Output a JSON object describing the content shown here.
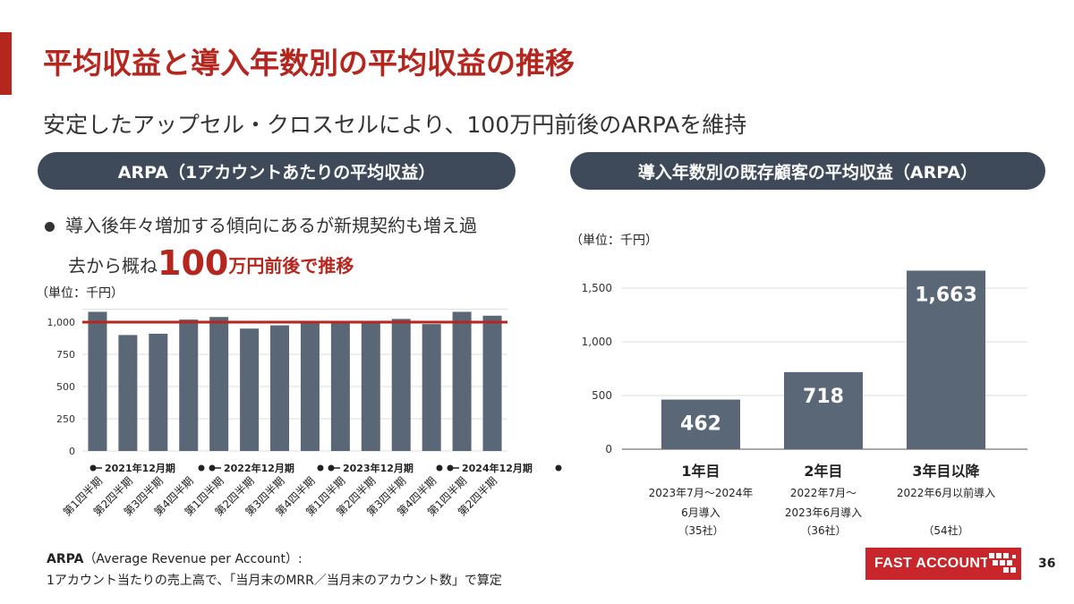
{
  "page": {
    "title": "平均収益と導入年数別の平均収益の推移",
    "subtitle": "安定したアップセル・クロスセルにより、100万円前後のARPAを維持",
    "left_header": "ARPA（1アカウントあたりの平均収益）",
    "right_header": "導入年数別の既存顧客の平均収益（ARPA）",
    "bullet_line1": "導入後年々増加する傾向にあるが新規契約も増え過",
    "bullet_line2_pre": "去から概ね",
    "bullet_big": "100",
    "bullet_line2_red": "万円",
    "bullet_line2_post": "前後で推移",
    "note_term": "ARPA",
    "note_def": "（Average Revenue per Account）:",
    "note_line2": "1アカウント当たりの売上高で、「当月末のMRR／当月末のアカウント数」で算定",
    "logo_text": "FAST ACCOUNTING",
    "page_number": "36",
    "brand_color": "#b5261e",
    "bar_color": "#5a6776"
  },
  "chart_data": [
    {
      "type": "bar",
      "unit_label": "（単位：千円）",
      "categories": [
        "第1四半期",
        "第2四半期",
        "第3四半期",
        "第4四半期",
        "第1四半期",
        "第2四半期",
        "第3四半期",
        "第4四半期",
        "第1四半期",
        "第2四半期",
        "第3四半期",
        "第4四半期",
        "第1四半期",
        "第2四半期"
      ],
      "values": [
        1080,
        900,
        910,
        1020,
        1040,
        950,
        975,
        1000,
        1010,
        1000,
        1025,
        985,
        1080,
        1050
      ],
      "reference_line": 1000,
      "year_groups": [
        "2021年12月期",
        "2022年12月期",
        "2023年12月期",
        "2024年12月期"
      ],
      "yticks": [
        0,
        250,
        500,
        750,
        1000
      ],
      "ytick_labels": [
        "0",
        "250",
        "500",
        "750",
        "1,000"
      ],
      "ylim": [
        0,
        1100
      ],
      "grid": true
    },
    {
      "type": "bar",
      "unit_label": "（単位：千円）",
      "categories": [
        "1年目",
        "2年目",
        "3年目以降"
      ],
      "values": [
        462,
        718,
        1663
      ],
      "value_labels": [
        "462",
        "718",
        "1,663"
      ],
      "descriptions": [
        [
          "2023年7月〜2024年",
          "6月導入",
          "（35社）"
        ],
        [
          "2022年7月〜",
          "2023年6月導入",
          "（36社）"
        ],
        [
          "2022年6月以前導入",
          "",
          "（54社）"
        ]
      ],
      "yticks": [
        0,
        500,
        1000,
        1500
      ],
      "ytick_labels": [
        "0",
        "500",
        "1,000",
        "1,500"
      ],
      "ylim": [
        0,
        1750
      ],
      "grid": true
    }
  ]
}
